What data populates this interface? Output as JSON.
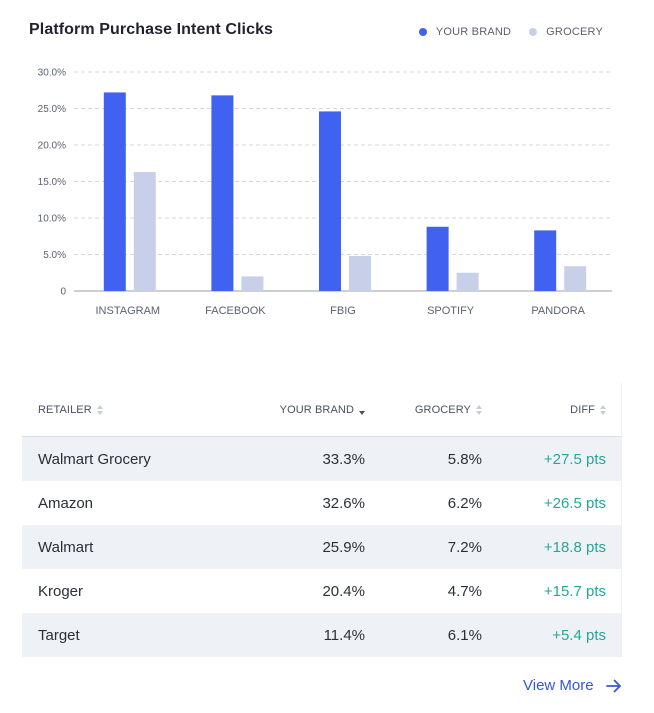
{
  "chart_data": {
    "type": "bar",
    "title": "Platform Purchase Intent Clicks",
    "categories": [
      "INSTAGRAM",
      "FACEBOOK",
      "FBIG",
      "SPOTIFY",
      "PANDORA"
    ],
    "series": [
      {
        "name": "YOUR BRAND",
        "color": "#4162f0",
        "values": [
          27.2,
          26.8,
          24.6,
          8.8,
          8.3
        ]
      },
      {
        "name": "GROCERY",
        "color": "#c8cfe9",
        "values": [
          16.3,
          2.0,
          4.8,
          2.5,
          3.4
        ]
      }
    ],
    "ylim": [
      0,
      30
    ],
    "yticks": [
      0,
      5,
      10,
      15,
      20,
      25,
      30
    ],
    "ytick_labels": [
      "0",
      "5.0%",
      "10.0%",
      "15.0%",
      "20.0%",
      "25.0%",
      "30.0%"
    ],
    "grid": true,
    "legend": "top-right"
  },
  "table": {
    "headers": {
      "retailer": "RETAILER",
      "your_brand": "YOUR BRAND",
      "grocery": "GROCERY",
      "diff": "DIFF"
    },
    "rows": [
      {
        "retailer": "Walmart Grocery",
        "your_brand": "33.3%",
        "grocery": "5.8%",
        "diff": "+27.5 pts"
      },
      {
        "retailer": "Amazon",
        "your_brand": "32.6%",
        "grocery": "6.2%",
        "diff": "+26.5 pts"
      },
      {
        "retailer": "Walmart",
        "your_brand": "25.9%",
        "grocery": "7.2%",
        "diff": "+18.8 pts"
      },
      {
        "retailer": "Kroger",
        "your_brand": "20.4%",
        "grocery": "4.7%",
        "diff": "+15.7 pts"
      },
      {
        "retailer": "Target",
        "your_brand": "11.4%",
        "grocery": "6.1%",
        "diff": "+5.4 pts"
      }
    ]
  },
  "footer": {
    "view_more_label": "View More",
    "view_more_icon": "arrow-right-icon"
  }
}
